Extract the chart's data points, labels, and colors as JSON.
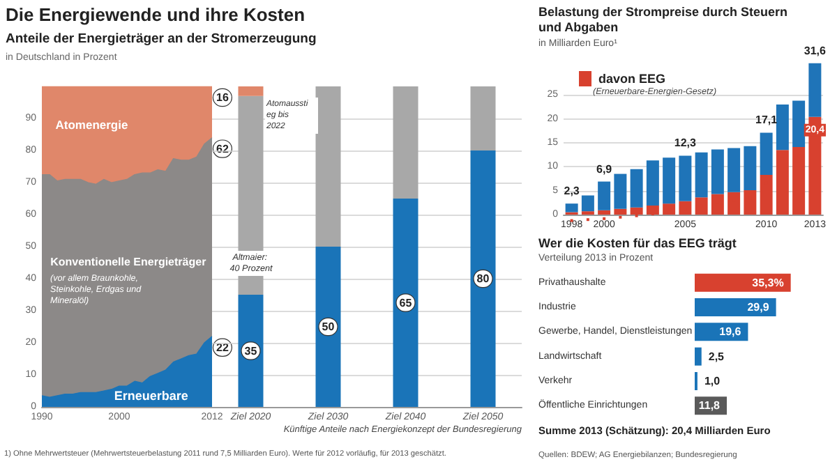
{
  "chart_data": [
    {
      "type": "area",
      "title": "Die Energiewende und ihre Kosten",
      "subtitle": "Anteile der Energieträger an der Stromerzeugung",
      "ylabel": "in Deutschland in Prozent",
      "xlim": [
        1990,
        2012
      ],
      "xticks": [
        1990,
        2000,
        2012
      ],
      "ylim": [
        0,
        100
      ],
      "yticks": [
        0,
        10,
        20,
        30,
        40,
        50,
        60,
        70,
        80,
        90
      ],
      "grid": "y",
      "stacked": true,
      "series": [
        {
          "name": "Erneuerbare",
          "color": "#1a74b8",
          "x": [
            1990,
            1991,
            1992,
            1993,
            1994,
            1995,
            1996,
            1997,
            1998,
            1999,
            2000,
            2001,
            2002,
            2003,
            2004,
            2005,
            2006,
            2007,
            2008,
            2009,
            2010,
            2011,
            2012
          ],
          "values": [
            3.5,
            3,
            3.5,
            4,
            4,
            4.5,
            4.5,
            4.5,
            5,
            5.5,
            6.5,
            6.5,
            8,
            7.5,
            9.5,
            10.5,
            11.5,
            14,
            15,
            16,
            16.5,
            20,
            22
          ],
          "value_labels": [
            null,
            null,
            null,
            null,
            null,
            null,
            null,
            null,
            null,
            null,
            null,
            null,
            null,
            null,
            null,
            null,
            null,
            null,
            null,
            null,
            null,
            null,
            "22"
          ]
        },
        {
          "name": "Konventionelle Energieträger",
          "color": "#8c8988",
          "x": [
            1990,
            1991,
            1992,
            1993,
            1994,
            1995,
            1996,
            1997,
            1998,
            1999,
            2000,
            2001,
            2002,
            2003,
            2004,
            2005,
            2006,
            2007,
            2008,
            2009,
            2010,
            2011,
            2012
          ],
          "values": [
            69,
            69.5,
            67,
            67,
            67,
            66.5,
            65.5,
            65,
            66,
            64.5,
            64,
            64.5,
            64.5,
            65.5,
            63.5,
            63.5,
            62,
            63.5,
            62,
            61,
            61.5,
            62,
            62
          ],
          "value_labels": [
            null,
            null,
            null,
            null,
            null,
            null,
            null,
            null,
            null,
            null,
            null,
            null,
            null,
            null,
            null,
            null,
            null,
            null,
            null,
            null,
            null,
            null,
            "62"
          ]
        },
        {
          "name": "Atomenergie",
          "color": "#e0876a",
          "x": [
            1990,
            1991,
            1992,
            1993,
            1994,
            1995,
            1996,
            1997,
            1998,
            1999,
            2000,
            2001,
            2002,
            2003,
            2004,
            2005,
            2006,
            2007,
            2008,
            2009,
            2010,
            2011,
            2012
          ],
          "values": [
            27.5,
            27.5,
            29.5,
            29,
            29,
            29,
            30,
            30.5,
            29,
            30,
            29.5,
            29,
            27.5,
            27,
            27,
            26,
            26.5,
            22.5,
            23,
            23,
            22,
            18,
            16
          ],
          "value_labels": [
            null,
            null,
            null,
            null,
            null,
            null,
            null,
            null,
            null,
            null,
            null,
            null,
            null,
            null,
            null,
            null,
            null,
            null,
            null,
            null,
            null,
            null,
            "16"
          ]
        }
      ],
      "annotations": [
        "(vor allem Braunkohle, Steinkohle, Erdgas und Mineralöl)",
        "1) Ohne Mehrwertsteuer (Mehrwertsteuerbelastung 2011 rund 7,5 Milliarden Euro). Werte für 2012 vorläufig, für 2013 geschätzt."
      ]
    },
    {
      "type": "bar",
      "categories": [
        "Ziel 2020",
        "Ziel 2030",
        "Ziel 2040",
        "Ziel 2050"
      ],
      "ylim": [
        0,
        100
      ],
      "yticks": [
        0,
        10,
        20,
        30,
        40,
        50,
        60,
        70,
        80,
        90
      ],
      "grid": "y",
      "stacked": true,
      "tick_labels": "x",
      "series": [
        {
          "color": "#1a74b8",
          "values": [
            35,
            50,
            65,
            80
          ],
          "value_labels": [
            "35",
            "50",
            "65",
            "80"
          ]
        },
        {
          "color": "#a8a8a8",
          "values": [
            62,
            50,
            35,
            20
          ]
        },
        {
          "color": "#e0876a",
          "values": [
            3,
            null,
            null,
            null
          ]
        }
      ],
      "annotations": [
        "Atomausstieg bis 2022",
        "Altmaier: 40 Prozent",
        "Künftige Anteile nach Energiekonzept der Bundesregierung"
      ]
    },
    {
      "type": "bar",
      "title": "Belastung der Strompreise durch Steuern und Abgaben",
      "subtitle": "in Milliarden Euro¹",
      "categories": [
        "1998",
        null,
        "2000",
        null,
        null,
        null,
        null,
        "2005",
        null,
        null,
        null,
        null,
        "2010",
        null,
        null,
        "2013"
      ],
      "ylim": [
        0,
        32
      ],
      "yticks": [
        0,
        5,
        10,
        15,
        20,
        25
      ],
      "grid": "y",
      "stacked": true,
      "legend": "top left",
      "series": [
        {
          "name": "davon EEG",
          "color": "#d8412f",
          "values": [
            0.5,
            0.7,
            0.9,
            1.2,
            1.5,
            1.9,
            2.3,
            2.8,
            3.6,
            4.3,
            4.7,
            5.1,
            8.3,
            13.5,
            14.1,
            20.4
          ],
          "value_labels": [
            null,
            null,
            null,
            null,
            null,
            null,
            null,
            null,
            null,
            null,
            null,
            null,
            null,
            null,
            null,
            "20,4"
          ]
        },
        {
          "color": "#1f74b8",
          "values": [
            1.8,
            3.3,
            6.0,
            7.3,
            8.0,
            9.4,
            9.6,
            9.5,
            9.4,
            9.3,
            9.2,
            9.2,
            8.8,
            9.5,
            9.7,
            11.2
          ]
        }
      ],
      "totals": [
        "2,3",
        null,
        "6,9",
        null,
        null,
        null,
        null,
        "12,3",
        null,
        null,
        null,
        null,
        "17,1",
        null,
        null,
        "31,6"
      ],
      "annotations": [
        "(Erneuerbare-Energien-Gesetz)"
      ]
    },
    {
      "type": "bar",
      "orientation": "horizontal",
      "title": "Wer die Kosten für das EEG trägt",
      "subtitle": "Verteilung 2013 in Prozent",
      "categories": [
        "Privathaushalte",
        "Industrie",
        "Gewerbe, Handel, Dienstleistungen",
        "Landwirtschaft",
        "Verkehr",
        "Öffentliche Einrichtungen"
      ],
      "values": [
        35.3,
        29.9,
        19.6,
        2.5,
        1.0,
        11.8
      ],
      "colors": [
        "#d8412f",
        "#1a74b8",
        "#1a74b8",
        "#1a74b8",
        "#1a74b8",
        "#5a5a5a"
      ],
      "value_labels": [
        "35,3%",
        "29,9",
        "19,6",
        "2,5",
        "1,0",
        "11,8"
      ],
      "tick_labels": "y",
      "annotations": [
        "Summe 2013 (Schätzung): 20,4 Milliarden Euro",
        "Quellen: BDEW; AG Energiebilanzen; Bundesregierung"
      ]
    }
  ]
}
